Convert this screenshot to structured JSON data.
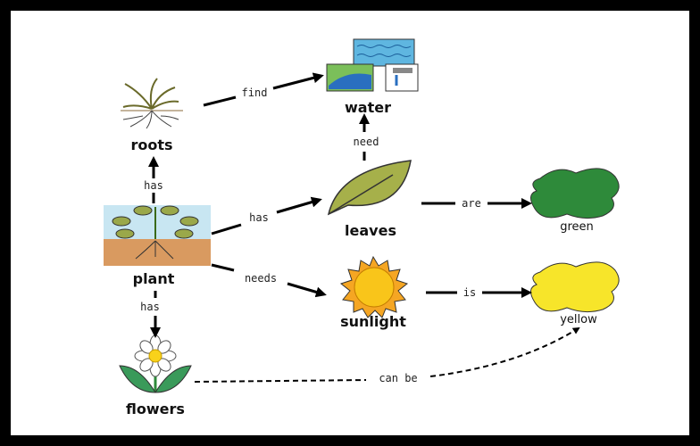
{
  "nodes": [
    {
      "label": "water"
    },
    {
      "label": "roots"
    },
    {
      "label": "leaves"
    },
    {
      "label": "green"
    },
    {
      "label": "plant"
    },
    {
      "label": "sunlight"
    },
    {
      "label": "yellow"
    },
    {
      "label": "flowers"
    }
  ],
  "edges": [
    {
      "label": "find"
    },
    {
      "label": "has"
    },
    {
      "label": "has"
    },
    {
      "label": "need"
    },
    {
      "label": "are"
    },
    {
      "label": "needs"
    },
    {
      "label": "is"
    },
    {
      "label": "has"
    },
    {
      "label": "can be"
    }
  ]
}
